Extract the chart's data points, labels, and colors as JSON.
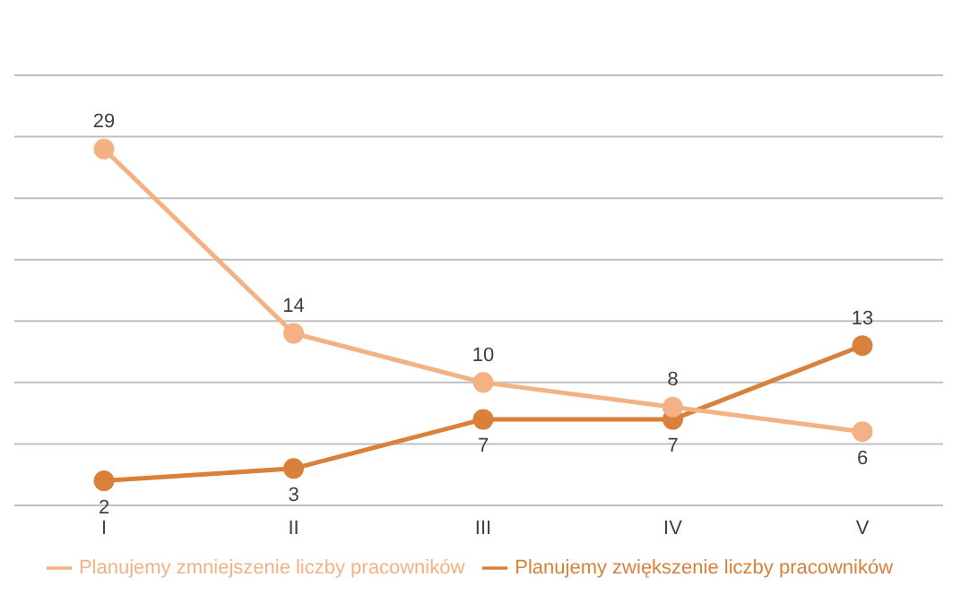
{
  "chart_data": {
    "type": "line",
    "categories": [
      "I",
      "II",
      "III",
      "IV",
      "V"
    ],
    "series": [
      {
        "name": "Planujemy zwiększenie liczby pracowników",
        "color": "#d9803a",
        "values": [
          2,
          3,
          7,
          7,
          13
        ]
      },
      {
        "name": "Planujemy zmniejszenie liczby pracowników",
        "color": "#f4b183",
        "values": [
          29,
          14,
          10,
          8,
          6
        ]
      }
    ],
    "ylim": [
      0,
      35
    ],
    "yticks": [
      0,
      5,
      10,
      15,
      20,
      25,
      30,
      35
    ],
    "tick_labels": "x",
    "grid": "y",
    "legend": "bottom",
    "marker": "circle",
    "line_style": "solid",
    "data_labels": true
  }
}
